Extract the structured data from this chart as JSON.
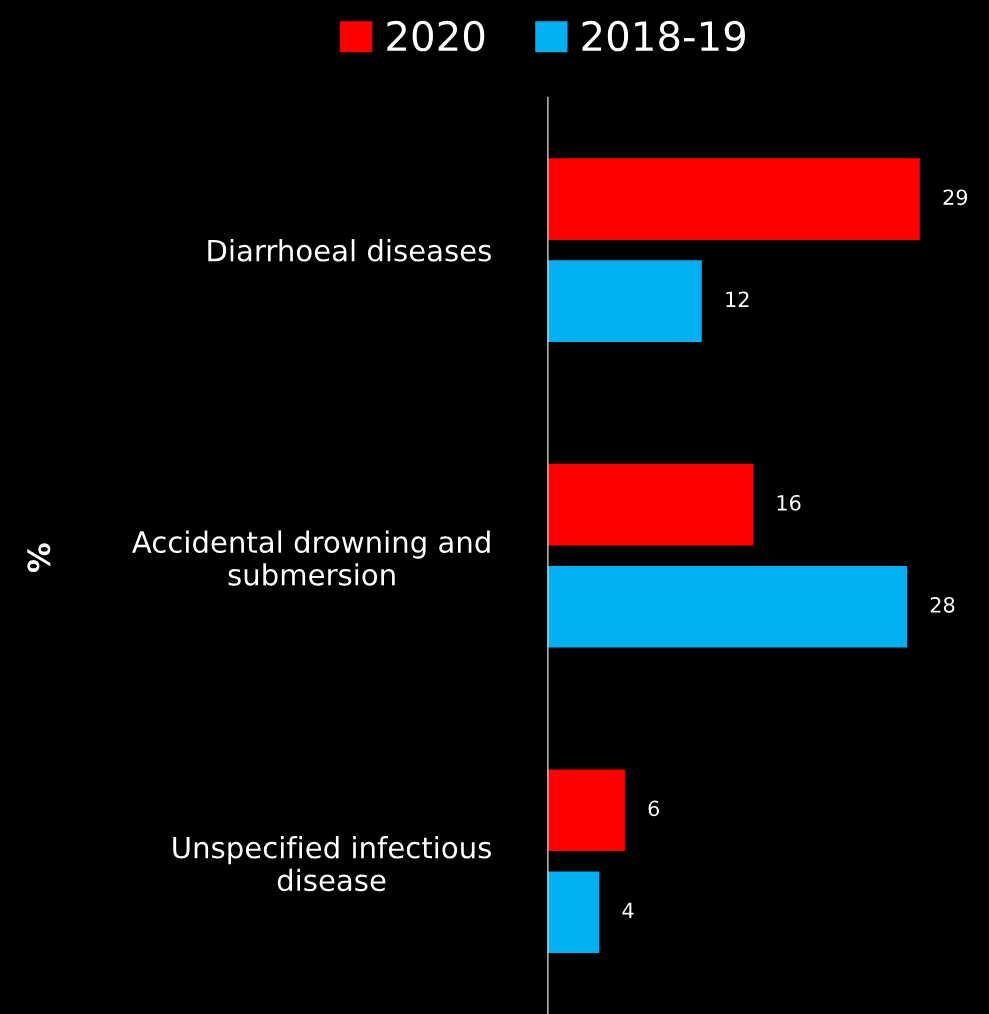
{
  "chart_data": {
    "type": "bar",
    "orientation": "horizontal",
    "ylabel": "%",
    "categories": [
      "Diarrhoeal diseases",
      "Accidental drowning and\nsubmersion",
      "Unspecified infectious\ndisease"
    ],
    "series": [
      {
        "name": "2020",
        "color": "#ff0000",
        "values": [
          29,
          16,
          6
        ]
      },
      {
        "name": "2018-19",
        "color": "#00b0f0",
        "values": [
          12,
          28,
          4
        ]
      }
    ],
    "data_labels": true,
    "legend": "top",
    "tick_labels": "y"
  }
}
